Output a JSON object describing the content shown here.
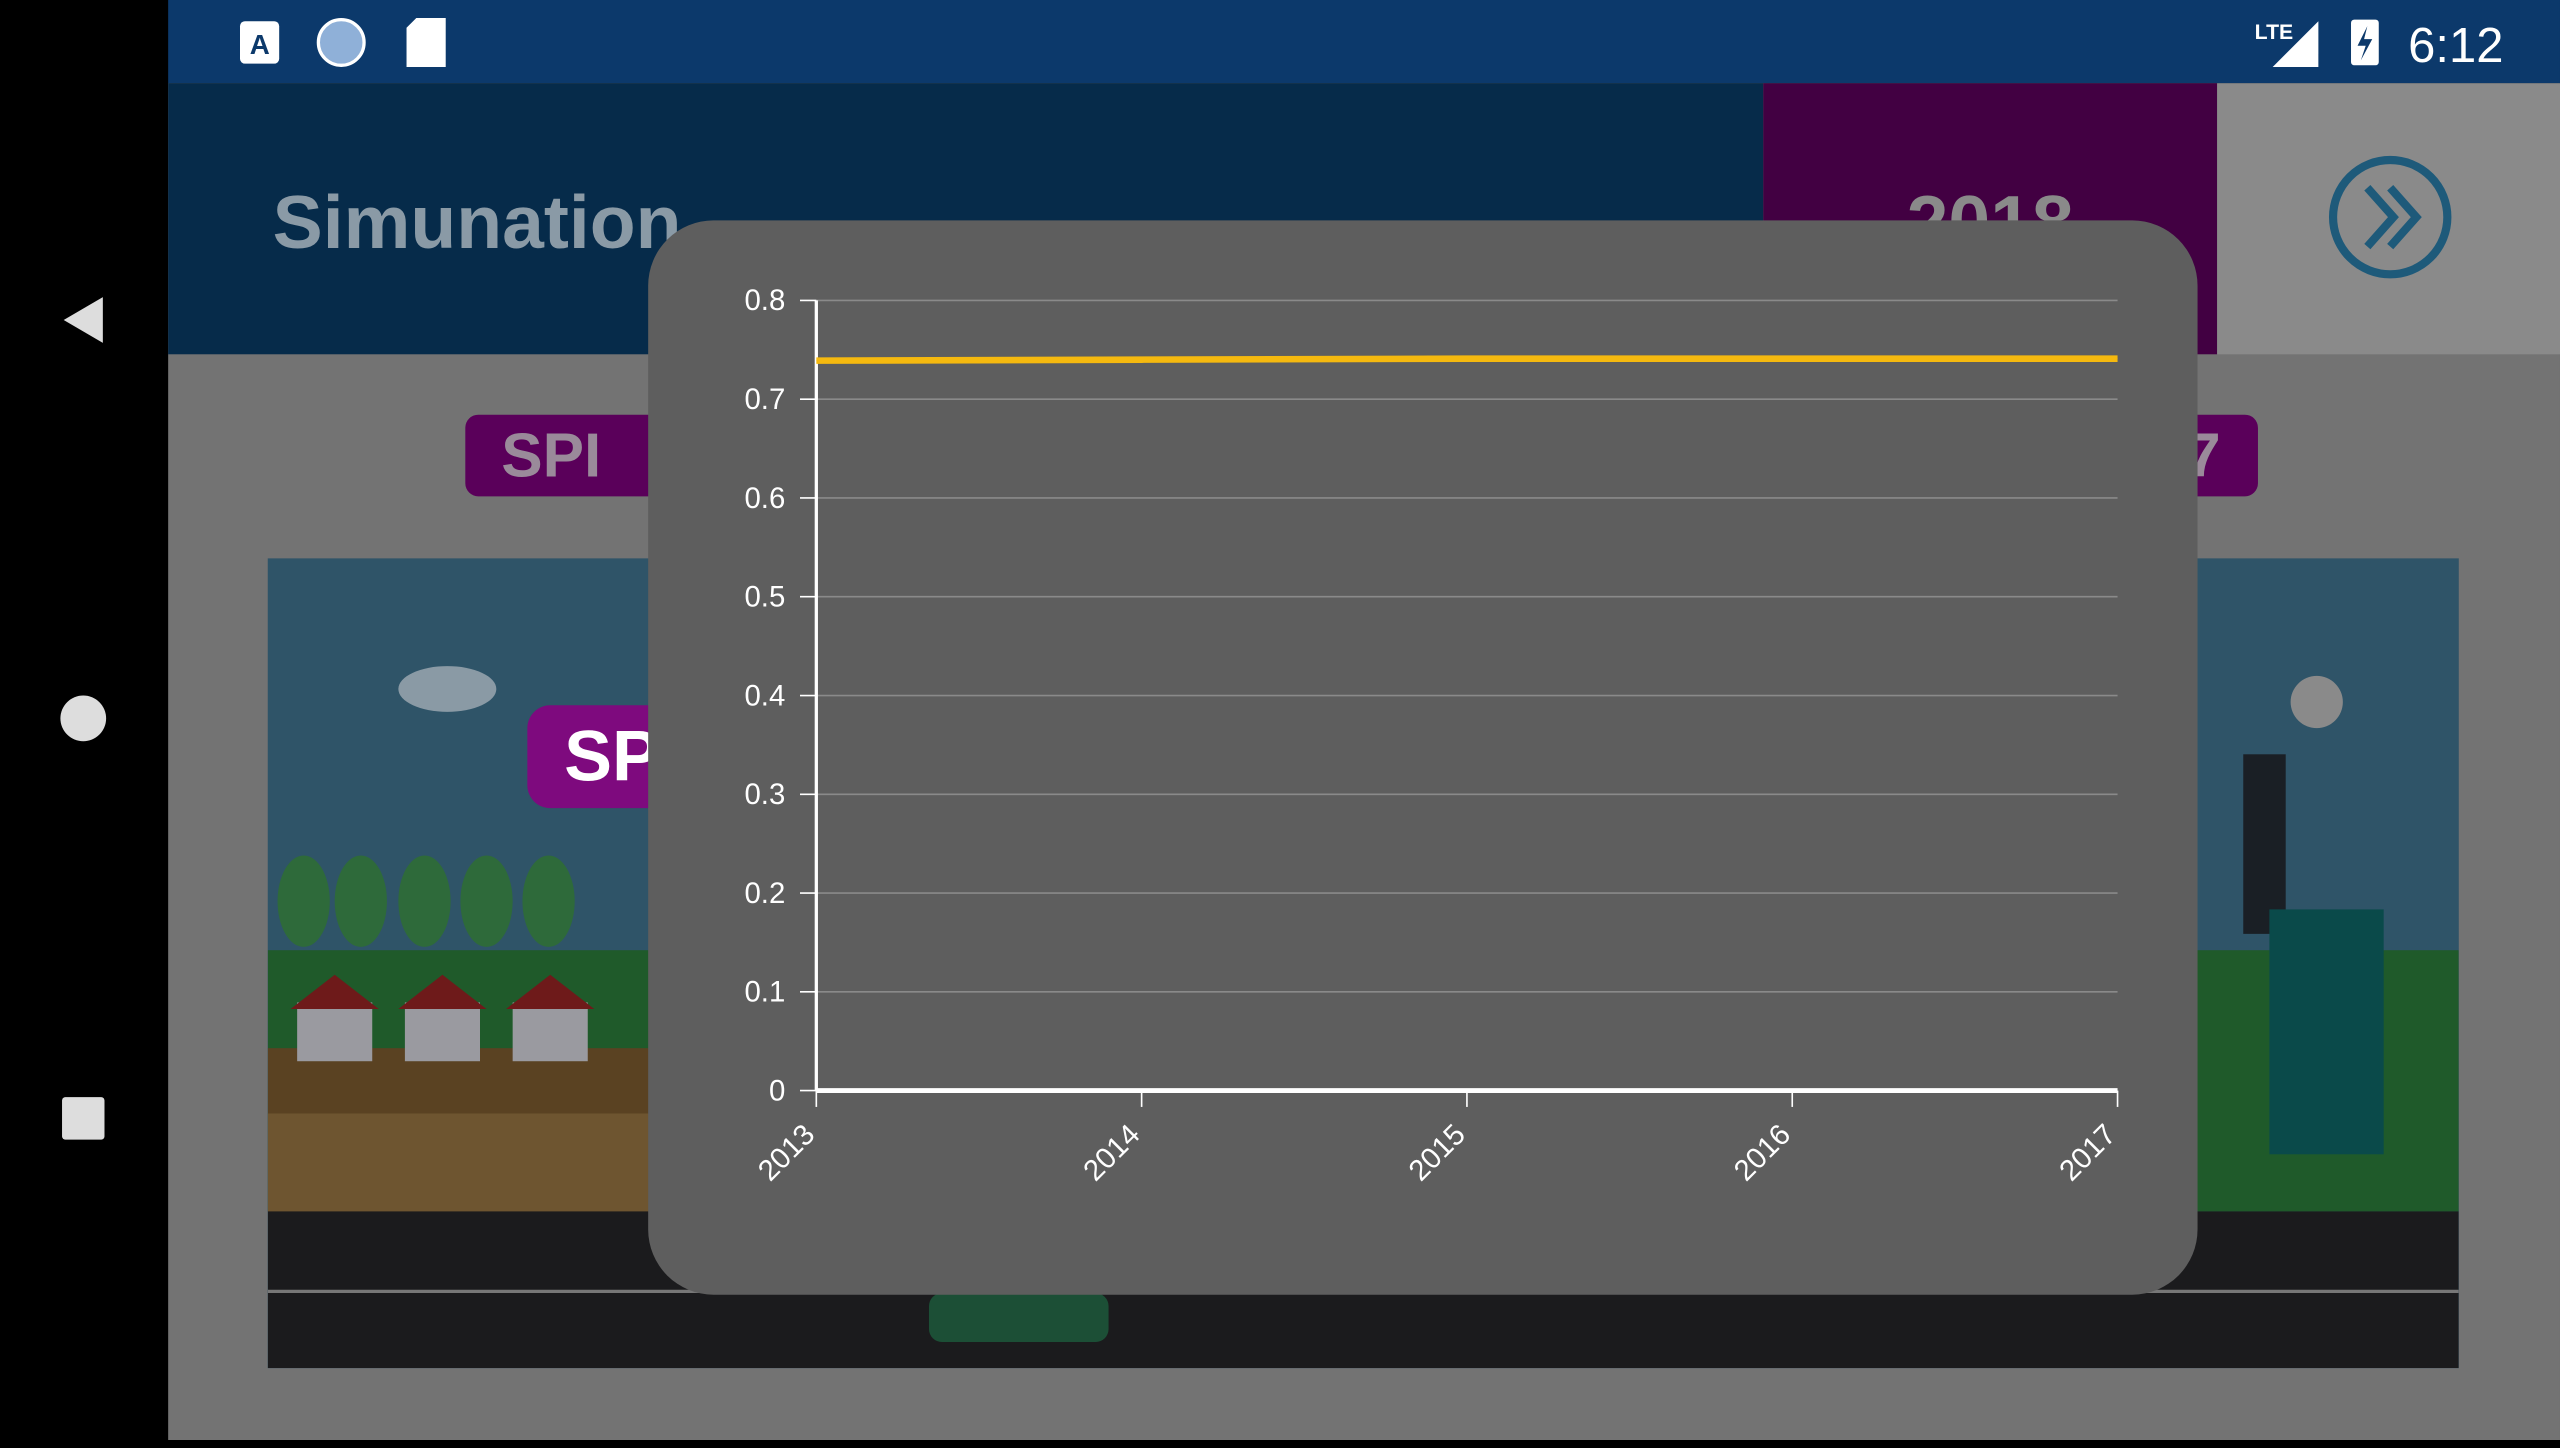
{
  "status_bar": {
    "time": "6:12",
    "network": "LTE",
    "icons": [
      "font-a-icon",
      "sync-icon",
      "sd-card-icon",
      "signal-icon",
      "battery-charging-icon"
    ]
  },
  "app": {
    "title": "Simunation",
    "year": "2018",
    "next_icon": "double-chevron-right-icon",
    "indicator_label": "SPI",
    "indicator_value_partial": "7",
    "badge": "SPI"
  },
  "colors": {
    "status_bar": "#0c396b",
    "header": "#062b4a",
    "year_box": "#420042",
    "badge": "#7e0a7e",
    "line": "#f5b90f",
    "modal": "#5e5e5e"
  },
  "chart_data": {
    "type": "line",
    "categories": [
      "2013",
      "2014",
      "2015",
      "2016",
      "2017"
    ],
    "series": [
      {
        "values": [
          0.739,
          0.74,
          0.741,
          0.741,
          0.741
        ],
        "color": "#f5b90f"
      }
    ],
    "ylim": [
      0,
      0.8
    ],
    "yticks": [
      "0",
      "0.1",
      "0.2",
      "0.3",
      "0.4",
      "0.5",
      "0.6",
      "0.7",
      "0.8"
    ],
    "grid": true,
    "xtick_rotation": -45
  }
}
